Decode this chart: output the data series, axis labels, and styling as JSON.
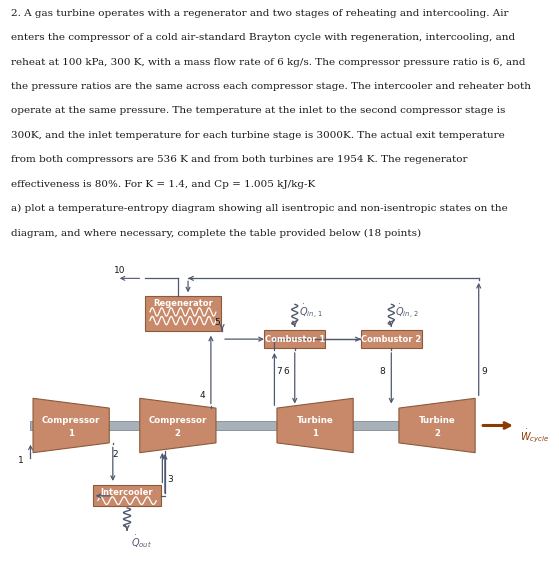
{
  "title_lines": [
    "2. A gas turbine operates with a regenerator and two stages of reheating and intercooling. Air",
    "enters the compressor of a cold air-standard Brayton cycle with regeneration, intercooling, and",
    "reheat at 100 kPa, 300 K, with a mass flow rate of 6 kg/s. The compressor pressure ratio is 6, and",
    "the pressure ratios are the same across each compressor stage. The intercooler and reheater both",
    "operate at the same pressure. The temperature at the inlet to the second compressor stage is",
    "300K, and the inlet temperature for each turbine stage is 3000K. The actual exit temperature",
    "from both compressors are 536 K and from both turbines are 1954 K. The regenerator",
    "effectiveness is 80%. For K = 1.4, and Cp = 1.005 kJ/kg-K",
    "a) plot a temperature-entropy diagram showing all isentropic and non-isentropic states on the",
    "diagram, and where necessary, complete the table provided below (18 points)"
  ],
  "box_color": "#C8896A",
  "box_edge_color": "#8B5A3A",
  "shaft_color": "#A8B0B8",
  "shaft_edge": "#808898",
  "line_color": "#505870",
  "arrow_color": "#505870",
  "w_arrow_color": "#8B3A00",
  "text_color": "#1a1a1a",
  "bg_color": "#FFFFFF"
}
